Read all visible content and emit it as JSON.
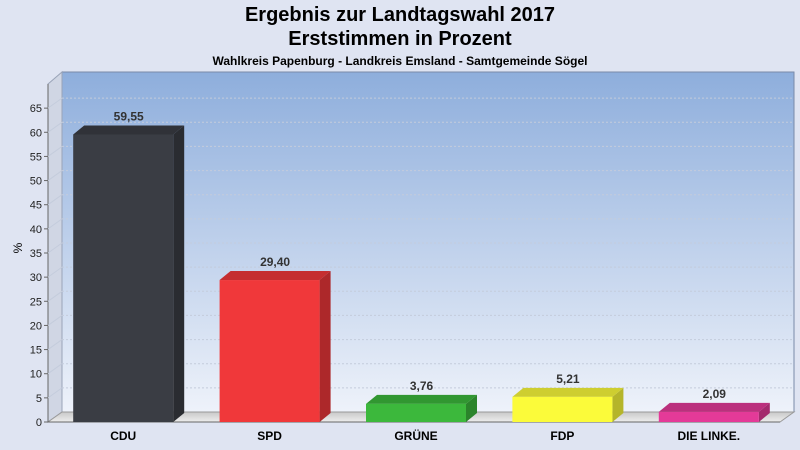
{
  "header": {
    "title": "Ergebnis zur Landtagswahl 2017",
    "subtitle": "Erststimmen in Prozent",
    "district": "Wahlkreis Papenburg - Landkreis Emsland - Samtgemeinde Sögel"
  },
  "chart_data": {
    "type": "bar",
    "title": "Ergebnis zur Landtagswahl 2017",
    "subtitle": "Erststimmen in Prozent",
    "ylabel": "%",
    "xlabel": "",
    "ylim": [
      0,
      70
    ],
    "yticks": [
      "0",
      "5",
      "10",
      "15",
      "20",
      "25",
      "30",
      "35",
      "40",
      "45",
      "50",
      "55",
      "60",
      "65"
    ],
    "grid": true,
    "categories": [
      "CDU",
      "SPD",
      "GRÜNE",
      "FDP",
      "DIE LINKE."
    ],
    "values": [
      59.55,
      29.4,
      3.76,
      5.21,
      2.09
    ],
    "value_labels": [
      "59,55",
      "29,40",
      "3,76",
      "5,21",
      "2,09"
    ],
    "colors": [
      "#3a3d44",
      "#f0383a",
      "#3cb83c",
      "#fbfb3a",
      "#e43a98"
    ]
  }
}
